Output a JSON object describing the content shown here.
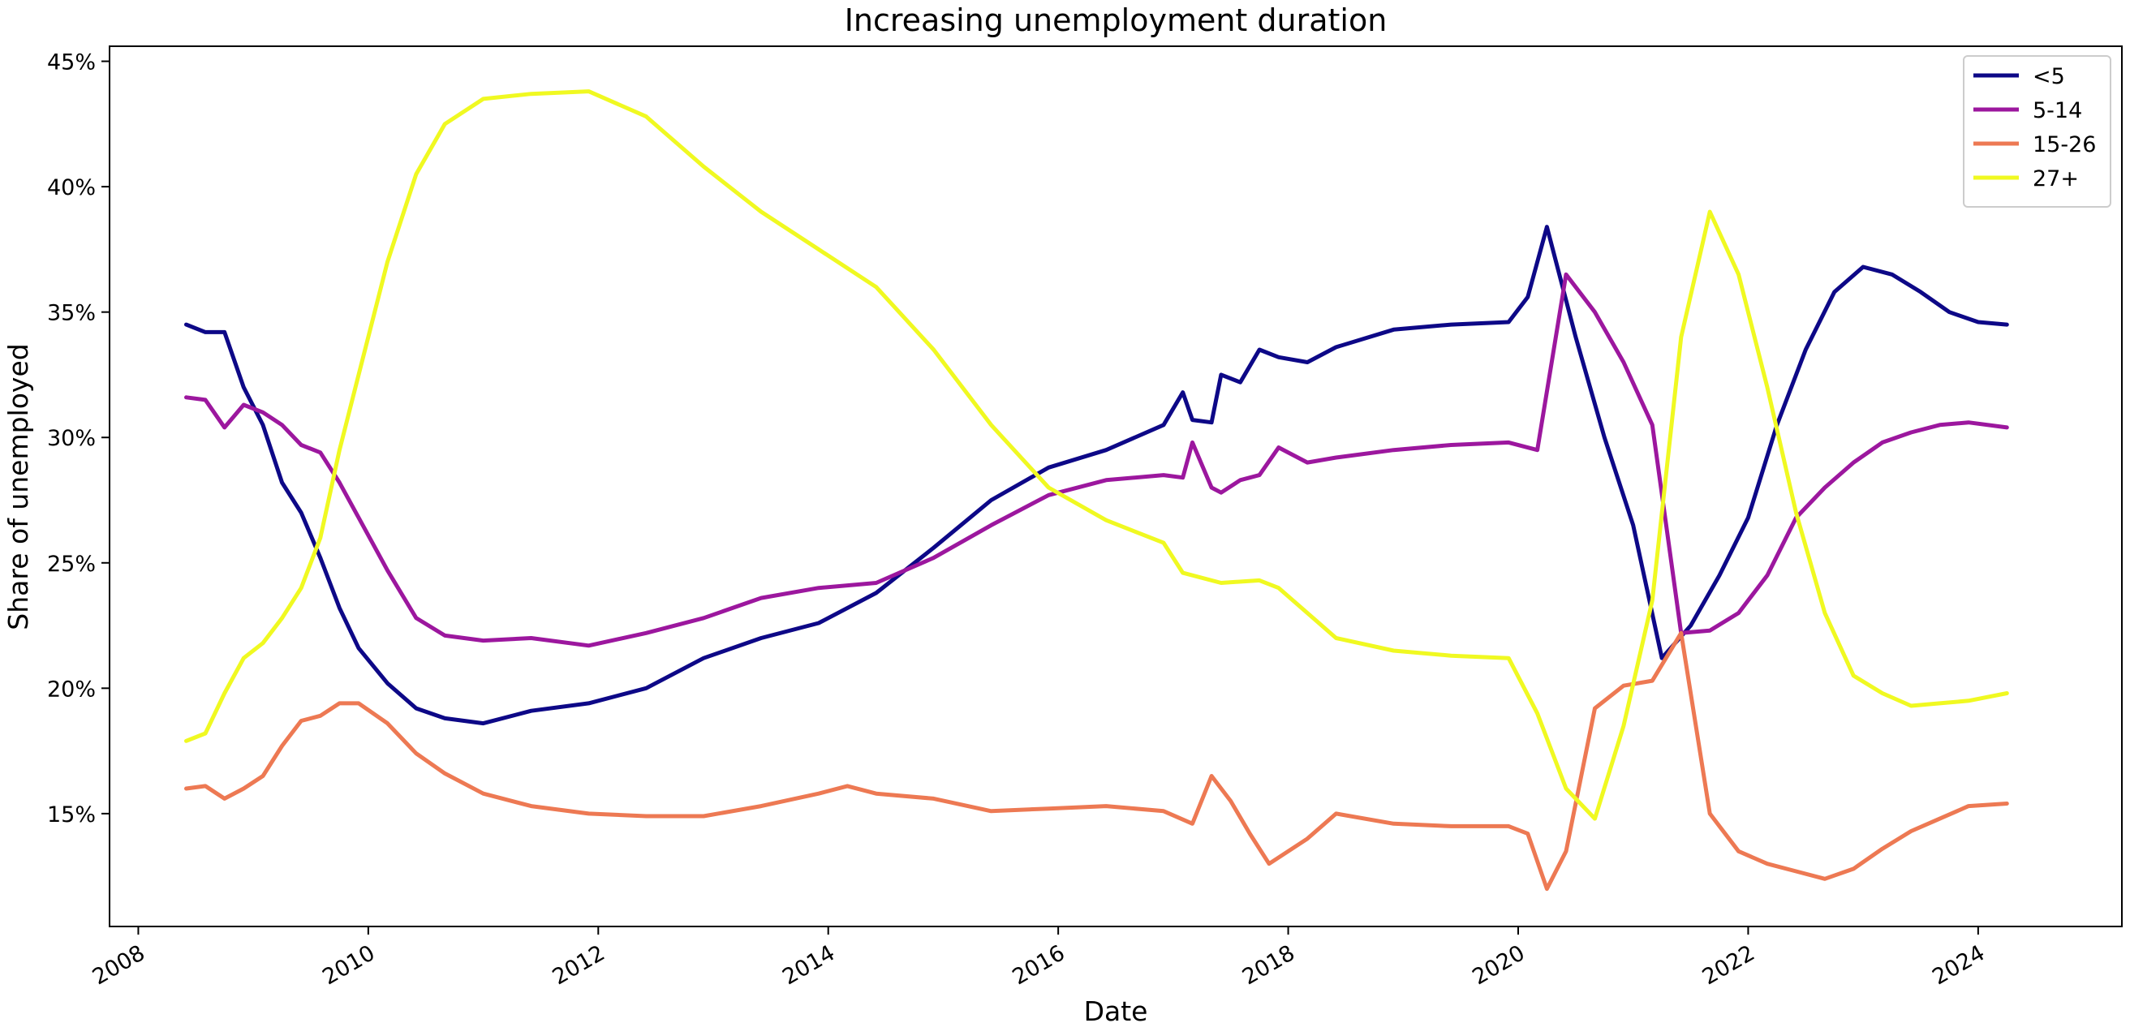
{
  "chart_data": {
    "type": "line",
    "title": "Increasing unemployment duration",
    "xlabel": "Date",
    "ylabel": "Share of unemployed",
    "x_ticks": [
      "2008",
      "2010",
      "2012",
      "2014",
      "2016",
      "2018",
      "2020",
      "2022",
      "2024"
    ],
    "y_ticks": [
      "15%",
      "20%",
      "25%",
      "30%",
      "35%",
      "40%",
      "45%"
    ],
    "xlim": [
      "2007-10",
      "2025-04"
    ],
    "ylim": [
      10.5,
      45.6
    ],
    "legend_position": "top-right",
    "grid": false,
    "series": [
      {
        "name": "<5",
        "color": "#0d0887",
        "points": [
          [
            "2008-06",
            34.5
          ],
          [
            "2008-08",
            34.2
          ],
          [
            "2008-10",
            34.2
          ],
          [
            "2008-12",
            32.0
          ],
          [
            "2009-02",
            30.5
          ],
          [
            "2009-04",
            28.2
          ],
          [
            "2009-06",
            27.0
          ],
          [
            "2009-08",
            25.2
          ],
          [
            "2009-10",
            23.2
          ],
          [
            "2009-12",
            21.6
          ],
          [
            "2010-03",
            20.2
          ],
          [
            "2010-06",
            19.2
          ],
          [
            "2010-09",
            18.8
          ],
          [
            "2011-01",
            18.6
          ],
          [
            "2011-06",
            19.1
          ],
          [
            "2011-12",
            19.4
          ],
          [
            "2012-06",
            20.0
          ],
          [
            "2012-12",
            21.2
          ],
          [
            "2013-06",
            22.0
          ],
          [
            "2013-12",
            22.6
          ],
          [
            "2014-06",
            23.8
          ],
          [
            "2014-12",
            25.6
          ],
          [
            "2015-06",
            27.5
          ],
          [
            "2015-12",
            28.8
          ],
          [
            "2016-06",
            29.5
          ],
          [
            "2016-12",
            30.5
          ],
          [
            "2017-02",
            31.8
          ],
          [
            "2017-03",
            30.7
          ],
          [
            "2017-05",
            30.6
          ],
          [
            "2017-06",
            32.5
          ],
          [
            "2017-08",
            32.2
          ],
          [
            "2017-10",
            33.5
          ],
          [
            "2017-12",
            33.2
          ],
          [
            "2018-03",
            33.0
          ],
          [
            "2018-06",
            33.6
          ],
          [
            "2018-12",
            34.3
          ],
          [
            "2019-06",
            34.5
          ],
          [
            "2019-12",
            34.6
          ],
          [
            "2020-02",
            35.6
          ],
          [
            "2020-04",
            38.4
          ],
          [
            "2020-07",
            34.0
          ],
          [
            "2020-10",
            30.0
          ],
          [
            "2021-01",
            26.5
          ],
          [
            "2021-04",
            21.2
          ],
          [
            "2021-07",
            22.5
          ],
          [
            "2021-10",
            24.5
          ],
          [
            "2022-01",
            26.8
          ],
          [
            "2022-04",
            30.5
          ],
          [
            "2022-07",
            33.5
          ],
          [
            "2022-10",
            35.8
          ],
          [
            "2023-01",
            36.8
          ],
          [
            "2023-04",
            36.5
          ],
          [
            "2023-07",
            35.8
          ],
          [
            "2023-10",
            35.0
          ],
          [
            "2024-01",
            34.6
          ],
          [
            "2024-04",
            34.5
          ]
        ]
      },
      {
        "name": "5-14",
        "color": "#9c179e",
        "points": [
          [
            "2008-06",
            31.6
          ],
          [
            "2008-08",
            31.5
          ],
          [
            "2008-10",
            30.4
          ],
          [
            "2008-12",
            31.3
          ],
          [
            "2009-02",
            31.0
          ],
          [
            "2009-04",
            30.5
          ],
          [
            "2009-06",
            29.7
          ],
          [
            "2009-08",
            29.4
          ],
          [
            "2009-10",
            28.2
          ],
          [
            "2009-12",
            26.8
          ],
          [
            "2010-03",
            24.7
          ],
          [
            "2010-06",
            22.8
          ],
          [
            "2010-09",
            22.1
          ],
          [
            "2011-01",
            21.9
          ],
          [
            "2011-06",
            22.0
          ],
          [
            "2011-12",
            21.7
          ],
          [
            "2012-06",
            22.2
          ],
          [
            "2012-12",
            22.8
          ],
          [
            "2013-06",
            23.6
          ],
          [
            "2013-12",
            24.0
          ],
          [
            "2014-06",
            24.2
          ],
          [
            "2014-12",
            25.2
          ],
          [
            "2015-06",
            26.5
          ],
          [
            "2015-12",
            27.7
          ],
          [
            "2016-06",
            28.3
          ],
          [
            "2016-12",
            28.5
          ],
          [
            "2017-02",
            28.4
          ],
          [
            "2017-03",
            29.8
          ],
          [
            "2017-05",
            28.0
          ],
          [
            "2017-06",
            27.8
          ],
          [
            "2017-08",
            28.3
          ],
          [
            "2017-10",
            28.5
          ],
          [
            "2017-12",
            29.6
          ],
          [
            "2018-03",
            29.0
          ],
          [
            "2018-06",
            29.2
          ],
          [
            "2018-12",
            29.5
          ],
          [
            "2019-06",
            29.7
          ],
          [
            "2019-12",
            29.8
          ],
          [
            "2020-03",
            29.5
          ],
          [
            "2020-06",
            36.5
          ],
          [
            "2020-09",
            35.0
          ],
          [
            "2020-12",
            33.0
          ],
          [
            "2021-03",
            30.5
          ],
          [
            "2021-06",
            22.2
          ],
          [
            "2021-09",
            22.3
          ],
          [
            "2021-12",
            23.0
          ],
          [
            "2022-03",
            24.5
          ],
          [
            "2022-06",
            26.8
          ],
          [
            "2022-09",
            28.0
          ],
          [
            "2022-12",
            29.0
          ],
          [
            "2023-03",
            29.8
          ],
          [
            "2023-06",
            30.2
          ],
          [
            "2023-09",
            30.5
          ],
          [
            "2023-12",
            30.6
          ],
          [
            "2024-04",
            30.4
          ]
        ]
      },
      {
        "name": "15-26",
        "color": "#ed7953",
        "points": [
          [
            "2008-06",
            16.0
          ],
          [
            "2008-08",
            16.1
          ],
          [
            "2008-10",
            15.6
          ],
          [
            "2008-12",
            16.0
          ],
          [
            "2009-02",
            16.5
          ],
          [
            "2009-04",
            17.7
          ],
          [
            "2009-06",
            18.7
          ],
          [
            "2009-08",
            18.9
          ],
          [
            "2009-10",
            19.4
          ],
          [
            "2009-12",
            19.4
          ],
          [
            "2010-03",
            18.6
          ],
          [
            "2010-06",
            17.4
          ],
          [
            "2010-09",
            16.6
          ],
          [
            "2011-01",
            15.8
          ],
          [
            "2011-06",
            15.3
          ],
          [
            "2011-12",
            15.0
          ],
          [
            "2012-06",
            14.9
          ],
          [
            "2012-12",
            14.9
          ],
          [
            "2013-06",
            15.3
          ],
          [
            "2013-12",
            15.8
          ],
          [
            "2014-03",
            16.1
          ],
          [
            "2014-06",
            15.8
          ],
          [
            "2014-12",
            15.6
          ],
          [
            "2015-06",
            15.1
          ],
          [
            "2015-12",
            15.2
          ],
          [
            "2016-06",
            15.3
          ],
          [
            "2016-12",
            15.1
          ],
          [
            "2017-03",
            14.6
          ],
          [
            "2017-05",
            16.5
          ],
          [
            "2017-07",
            15.5
          ],
          [
            "2017-09",
            14.2
          ],
          [
            "2017-11",
            13.0
          ],
          [
            "2018-03",
            14.0
          ],
          [
            "2018-06",
            15.0
          ],
          [
            "2018-12",
            14.6
          ],
          [
            "2019-06",
            14.5
          ],
          [
            "2019-12",
            14.5
          ],
          [
            "2020-02",
            14.2
          ],
          [
            "2020-04",
            12.0
          ],
          [
            "2020-06",
            13.5
          ],
          [
            "2020-09",
            19.2
          ],
          [
            "2020-12",
            20.1
          ],
          [
            "2021-03",
            20.3
          ],
          [
            "2021-06",
            22.2
          ],
          [
            "2021-09",
            15.0
          ],
          [
            "2021-12",
            13.5
          ],
          [
            "2022-03",
            13.0
          ],
          [
            "2022-06",
            12.7
          ],
          [
            "2022-09",
            12.4
          ],
          [
            "2022-12",
            12.8
          ],
          [
            "2023-03",
            13.6
          ],
          [
            "2023-06",
            14.3
          ],
          [
            "2023-09",
            14.8
          ],
          [
            "2023-12",
            15.3
          ],
          [
            "2024-04",
            15.4
          ]
        ]
      },
      {
        "name": "27+",
        "color": "#f0f921",
        "points": [
          [
            "2008-06",
            17.9
          ],
          [
            "2008-08",
            18.2
          ],
          [
            "2008-10",
            19.8
          ],
          [
            "2008-12",
            21.2
          ],
          [
            "2009-02",
            21.8
          ],
          [
            "2009-04",
            22.8
          ],
          [
            "2009-06",
            24.0
          ],
          [
            "2009-08",
            26.0
          ],
          [
            "2009-10",
            29.5
          ],
          [
            "2009-12",
            32.5
          ],
          [
            "2010-03",
            37.0
          ],
          [
            "2010-06",
            40.5
          ],
          [
            "2010-09",
            42.5
          ],
          [
            "2011-01",
            43.5
          ],
          [
            "2011-06",
            43.7
          ],
          [
            "2011-12",
            43.8
          ],
          [
            "2012-06",
            42.8
          ],
          [
            "2012-12",
            40.8
          ],
          [
            "2013-06",
            39.0
          ],
          [
            "2013-12",
            37.5
          ],
          [
            "2014-06",
            36.0
          ],
          [
            "2014-12",
            33.5
          ],
          [
            "2015-06",
            30.5
          ],
          [
            "2015-12",
            28.0
          ],
          [
            "2016-06",
            26.7
          ],
          [
            "2016-12",
            25.8
          ],
          [
            "2017-02",
            24.6
          ],
          [
            "2017-06",
            24.2
          ],
          [
            "2017-10",
            24.3
          ],
          [
            "2017-12",
            24.0
          ],
          [
            "2018-06",
            22.0
          ],
          [
            "2018-12",
            21.5
          ],
          [
            "2019-06",
            21.3
          ],
          [
            "2019-12",
            21.2
          ],
          [
            "2020-03",
            19.0
          ],
          [
            "2020-06",
            16.0
          ],
          [
            "2020-09",
            14.8
          ],
          [
            "2020-12",
            18.5
          ],
          [
            "2021-03",
            23.5
          ],
          [
            "2021-06",
            34.0
          ],
          [
            "2021-09",
            39.0
          ],
          [
            "2021-12",
            36.5
          ],
          [
            "2022-03",
            32.0
          ],
          [
            "2022-06",
            27.0
          ],
          [
            "2022-09",
            23.0
          ],
          [
            "2022-12",
            20.5
          ],
          [
            "2023-03",
            19.8
          ],
          [
            "2023-06",
            19.3
          ],
          [
            "2023-09",
            19.4
          ],
          [
            "2023-12",
            19.5
          ],
          [
            "2024-04",
            19.8
          ]
        ]
      }
    ]
  }
}
